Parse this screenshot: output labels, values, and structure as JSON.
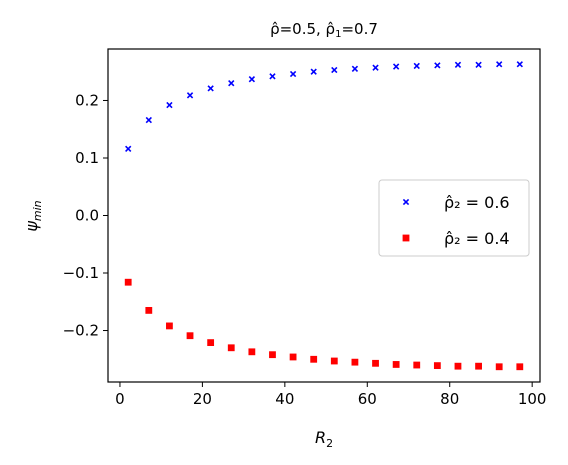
{
  "chart_data": {
    "type": "scatter",
    "title": "ρ̂=0.5, ρ̂₁=0.7",
    "xlabel": "R₂",
    "ylabel": "ψmin",
    "xlim": [
      -2.9,
      101.9
    ],
    "ylim": [
      -0.2895,
      0.2895
    ],
    "xticks": [
      0,
      20,
      40,
      60,
      80,
      100
    ],
    "yticks": [
      -0.2,
      -0.1,
      0.0,
      0.1,
      0.2
    ],
    "xtick_labels": [
      "0",
      "20",
      "40",
      "60",
      "80",
      "100"
    ],
    "ytick_labels": [
      "−0.2",
      "−0.1",
      "0.0",
      "0.1",
      "0.2"
    ],
    "grid": false,
    "legend_position": "center-right",
    "x": [
      2,
      7,
      12,
      17,
      22,
      27,
      32,
      37,
      42,
      47,
      52,
      57,
      62,
      67,
      72,
      77,
      82,
      87,
      92,
      97
    ],
    "series": [
      {
        "name": "ρ̂₂ = 0.6",
        "marker": "x",
        "color": "#0000ff",
        "values": [
          0.116,
          0.166,
          0.192,
          0.209,
          0.221,
          0.23,
          0.237,
          0.242,
          0.246,
          0.25,
          0.253,
          0.255,
          0.257,
          0.259,
          0.26,
          0.261,
          0.262,
          0.262,
          0.263,
          0.263
        ]
      },
      {
        "name": "ρ̂₂ = 0.4",
        "marker": "square",
        "color": "#ff0000",
        "values": [
          -0.116,
          -0.165,
          -0.192,
          -0.209,
          -0.221,
          -0.23,
          -0.237,
          -0.242,
          -0.246,
          -0.25,
          -0.253,
          -0.255,
          -0.257,
          -0.259,
          -0.26,
          -0.261,
          -0.262,
          -0.262,
          -0.263,
          -0.263
        ]
      }
    ]
  }
}
